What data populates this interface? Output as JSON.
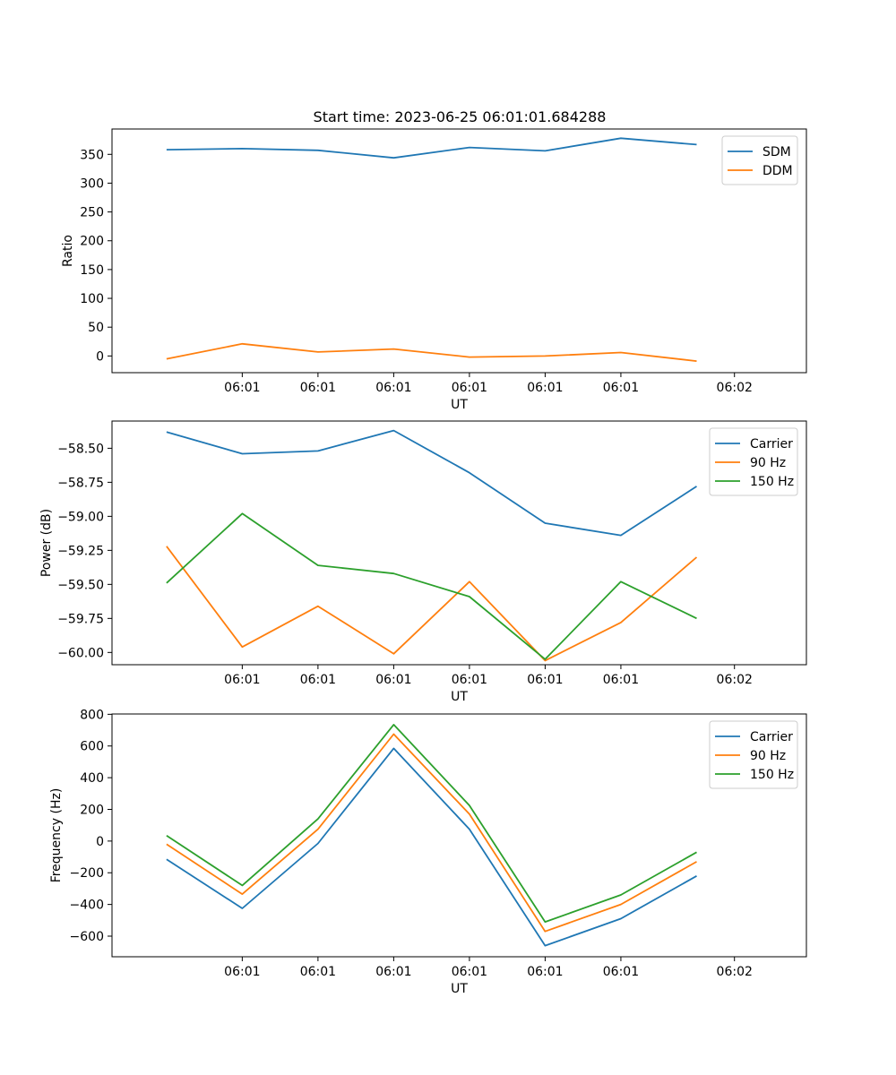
{
  "figure": {
    "title": "Start time: 2023-06-25 06:01:01.684288"
  },
  "colors": {
    "blue": "#1f77b4",
    "orange": "#ff7f0e",
    "green": "#2ca02c"
  },
  "chart_data": [
    {
      "type": "line",
      "title": "Start time: 2023-06-25 06:01:01.684288",
      "xlabel": "UT",
      "ylabel": "Ratio",
      "x_tick_labels": [
        "06:01",
        "06:01",
        "06:01",
        "06:01",
        "06:01",
        "06:01",
        "06:02"
      ],
      "x_index": [
        1,
        2,
        3,
        4,
        5,
        6,
        7,
        8
      ],
      "xlim": [
        0.28,
        9.45
      ],
      "ylim": [
        -29,
        394
      ],
      "yticks": [
        0,
        50,
        100,
        150,
        200,
        250,
        300,
        350
      ],
      "legend": "top-right",
      "series": [
        {
          "name": "SDM",
          "color": "#1f77b4",
          "values": [
            358,
            360,
            357,
            344,
            362,
            356,
            378,
            367
          ]
        },
        {
          "name": "DDM",
          "color": "#ff7f0e",
          "values": [
            -5,
            21,
            7,
            12,
            -2,
            0,
            6,
            -9
          ]
        }
      ]
    },
    {
      "type": "line",
      "xlabel": "UT",
      "ylabel": "Power (dB)",
      "x_tick_labels": [
        "06:01",
        "06:01",
        "06:01",
        "06:01",
        "06:01",
        "06:01",
        "06:02"
      ],
      "x_index": [
        1,
        2,
        3,
        4,
        5,
        6,
        7,
        8
      ],
      "xlim": [
        0.28,
        9.45
      ],
      "ylim": [
        -60.09,
        -58.3
      ],
      "yticks": [
        -60.0,
        -59.75,
        -59.5,
        -59.25,
        -59.0,
        -58.75,
        -58.5
      ],
      "ytick_labels": [
        "−60.00",
        "−59.75",
        "−59.50",
        "−59.25",
        "−59.00",
        "−58.75",
        "−58.50"
      ],
      "legend": "top-right",
      "series": [
        {
          "name": "Carrier",
          "color": "#1f77b4",
          "values": [
            -58.38,
            -58.54,
            -58.52,
            -58.37,
            -58.68,
            -59.05,
            -59.14,
            -58.78
          ]
        },
        {
          "name": "90 Hz",
          "color": "#ff7f0e",
          "values": [
            -59.22,
            -59.96,
            -59.66,
            -60.01,
            -59.48,
            -60.06,
            -59.78,
            -59.3
          ]
        },
        {
          "name": "150 Hz",
          "color": "#2ca02c",
          "values": [
            -59.49,
            -58.98,
            -59.36,
            -59.42,
            -59.59,
            -60.05,
            -59.48,
            -59.75
          ]
        }
      ]
    },
    {
      "type": "line",
      "xlabel": "UT",
      "ylabel": "Frequency (Hz)",
      "x_tick_labels": [
        "06:01",
        "06:01",
        "06:01",
        "06:01",
        "06:01",
        "06:01",
        "06:02"
      ],
      "x_index": [
        1,
        2,
        3,
        4,
        5,
        6,
        7,
        8
      ],
      "xlim": [
        0.28,
        9.45
      ],
      "ylim": [
        -730,
        802
      ],
      "yticks": [
        -600,
        -400,
        -200,
        0,
        200,
        400,
        600,
        800
      ],
      "ytick_labels": [
        "−600",
        "−400",
        "−200",
        "0",
        "200",
        "400",
        "600",
        "800"
      ],
      "legend": "top-right",
      "series": [
        {
          "name": "Carrier",
          "color": "#1f77b4",
          "values": [
            -115,
            -425,
            -15,
            585,
            75,
            -660,
            -490,
            -220
          ]
        },
        {
          "name": "90 Hz",
          "color": "#ff7f0e",
          "values": [
            -20,
            -335,
            75,
            675,
            170,
            -570,
            -400,
            -130
          ]
        },
        {
          "name": "150 Hz",
          "color": "#2ca02c",
          "values": [
            35,
            -280,
            140,
            735,
            225,
            -510,
            -340,
            -70
          ]
        }
      ]
    }
  ]
}
